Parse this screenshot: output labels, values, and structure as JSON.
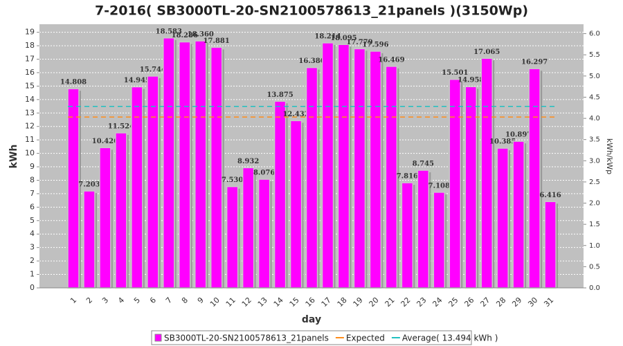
{
  "chart_data": {
    "type": "bar",
    "title": "7-2016( SB3000TL-20-SN2100578613_21panels )(3150Wp)",
    "x_label": "day",
    "y_label": "kWh",
    "y2_label": "kWh/kWp",
    "categories": [
      "1",
      "2",
      "3",
      "4",
      "5",
      "6",
      "7",
      "8",
      "9",
      "10",
      "11",
      "12",
      "13",
      "14",
      "15",
      "16",
      "17",
      "18",
      "19",
      "20",
      "21",
      "22",
      "23",
      "24",
      "25",
      "26",
      "27",
      "28",
      "29",
      "30",
      "31"
    ],
    "series": [
      {
        "name": "SB3000TL-20-SN2100578613_21panels",
        "color": "#ff00ff",
        "values": [
          14.808,
          7.203,
          10.426,
          11.524,
          14.945,
          15.744,
          18.583,
          18.286,
          18.36,
          17.881,
          7.53,
          8.932,
          8.076,
          13.875,
          12.432,
          16.38,
          18.214,
          18.095,
          17.779,
          17.596,
          16.469,
          7.816,
          8.745,
          7.108,
          15.501,
          14.958,
          17.065,
          10.385,
          10.897,
          16.297,
          6.416
        ],
        "value_labels": [
          "14.808",
          "7.203",
          "10.426",
          "11.524",
          "14.945",
          "15.744",
          "18.583",
          "18.286",
          "18.360",
          "17.881",
          "7.530",
          "8.932",
          "8.076",
          "13.875",
          "12.432",
          "16.380",
          "18.214",
          "18.095",
          "17.779",
          "17.596",
          "16.469",
          "7.816",
          "8.745",
          "7.108",
          "15.501",
          "14.958",
          "17.065",
          "10.385",
          "10.897",
          "16.297",
          "6.416"
        ]
      },
      {
        "name": "Expected",
        "color": "#ff8c1a",
        "type": "hline",
        "value": 12.7
      },
      {
        "name": "Average( 13.494 kWh )",
        "color": "#20c0c0",
        "type": "hline",
        "value": 13.494
      }
    ],
    "ylim": [
      0,
      19.6
    ],
    "yticks": [
      0,
      1,
      2,
      3,
      4,
      5,
      6,
      7,
      8,
      9,
      10,
      11,
      12,
      13,
      14,
      15,
      16,
      17,
      18,
      19
    ],
    "y2lim": [
      0,
      6.222
    ],
    "y2ticks": [
      {
        "value": 0,
        "label": "0.0"
      },
      {
        "value": 0.5,
        "label": "0.5"
      },
      {
        "value": 1,
        "label": "1.0"
      },
      {
        "value": 1.5,
        "label": "1.5"
      },
      {
        "value": 2,
        "label": "2.0"
      },
      {
        "value": 2.5,
        "label": "2.5"
      },
      {
        "value": 3,
        "label": "3.0"
      },
      {
        "value": 3.5,
        "label": "3.5"
      },
      {
        "value": 4,
        "label": "4.0"
      },
      {
        "value": 4.5,
        "label": "4.5"
      },
      {
        "value": 5,
        "label": "5.0"
      },
      {
        "value": 5.5,
        "label": "5.5"
      },
      {
        "value": 6,
        "label": "6.0"
      }
    ],
    "grid": true,
    "legend": "bottom"
  }
}
